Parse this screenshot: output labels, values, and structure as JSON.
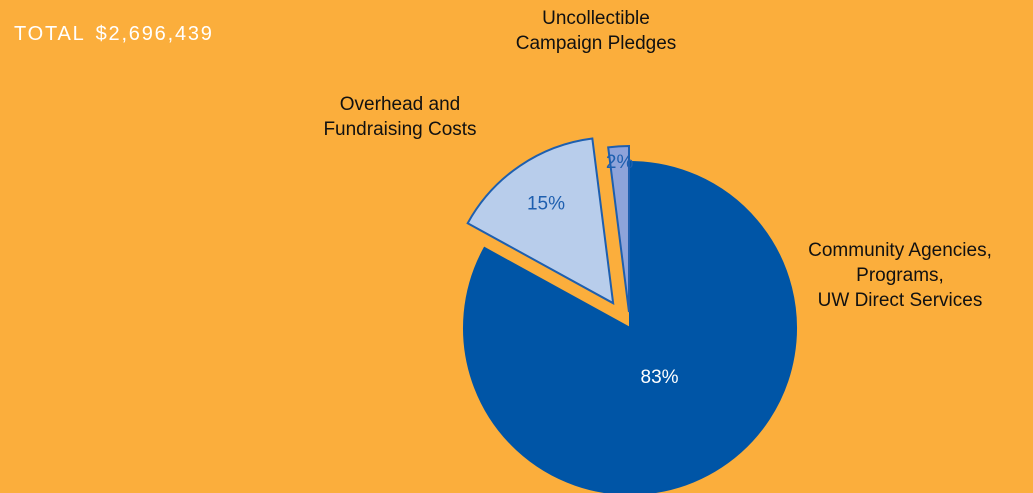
{
  "header": {
    "total_label": "TOTAL",
    "total_value": "$2,696,439"
  },
  "colors": {
    "background": "#FBAE3C",
    "slice_outline": "#1E5FAF",
    "category_text": "#111111"
  },
  "chart_data": {
    "type": "pie",
    "title": "",
    "start_angle_deg": 0,
    "direction": "clockwise",
    "explode": true,
    "slices": [
      {
        "label_lines": [
          "Community Agencies,",
          "Programs,",
          "UW Direct Services"
        ],
        "value": 83,
        "display": "83%",
        "color": "#0055A6",
        "pct_color": "#FFFFFF"
      },
      {
        "label_lines": [
          "Overhead and",
          "Fundraising Costs"
        ],
        "value": 15,
        "display": "15%",
        "color": "#B8CDEB",
        "pct_color": "#1E5FAF"
      },
      {
        "label_lines": [
          "Uncollectible",
          "Campaign Pledges"
        ],
        "value": 2,
        "display": "2%",
        "color": "#8EA3DA",
        "pct_color": "#1E5FAF"
      }
    ]
  }
}
